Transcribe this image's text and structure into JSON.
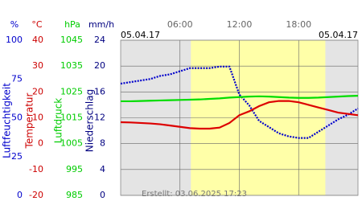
{
  "chart_data": {
    "type": "line",
    "dates": [
      "05.04.17",
      "05.04.17"
    ],
    "footer": "Erstellt: 03.06.2025 17:23",
    "xlim": [
      0,
      24
    ],
    "xticks": [
      {
        "value": 6,
        "label": "06:00"
      },
      {
        "value": 12,
        "label": "12:00"
      },
      {
        "value": 18,
        "label": "18:00"
      }
    ],
    "daylight": [
      7.1,
      20.7
    ],
    "grid": true,
    "axes": [
      {
        "unit": "%",
        "title": "Luftfeuchtigkeit",
        "color": "#0000cc",
        "ylim": [
          0,
          100
        ],
        "yticks": [
          0,
          25,
          50,
          75,
          100
        ]
      },
      {
        "unit": "°C",
        "title": "Temperatur",
        "color": "#cc0000",
        "ylim": [
          -20,
          40
        ],
        "yticks": [
          -20,
          -10,
          0,
          10,
          20,
          30,
          40
        ]
      },
      {
        "unit": "hPa",
        "title": "Luftdruck",
        "color": "#00cc00",
        "ylim": [
          985,
          1045
        ],
        "yticks": [
          985,
          995,
          1005,
          1015,
          1025,
          1035,
          1045
        ]
      },
      {
        "unit": "mm/h",
        "title": "Niederschlag",
        "color": "#000080",
        "ylim": [
          0,
          24
        ],
        "yticks": [
          0,
          4,
          8,
          12,
          16,
          20,
          24
        ]
      }
    ],
    "x": [
      0,
      1,
      2,
      3,
      4,
      5,
      6,
      7,
      8,
      9,
      10,
      11,
      12,
      13,
      14,
      15,
      16,
      17,
      18,
      19,
      20,
      21,
      22,
      23,
      24
    ],
    "series": [
      {
        "axis": 0,
        "color": "#0000cc",
        "values": [
          72,
          73,
          74,
          75,
          77,
          78,
          80,
          82,
          82,
          82,
          83,
          83,
          65,
          58,
          48,
          44,
          40,
          38,
          37,
          37,
          41,
          45,
          49,
          52,
          56
        ]
      },
      {
        "axis": 1,
        "color": "#dd0000",
        "values": [
          8.3,
          8.2,
          8,
          7.8,
          7.5,
          7,
          6.5,
          6,
          5.8,
          5.8,
          6.2,
          8,
          11,
          12.5,
          14.5,
          16,
          16.5,
          16.5,
          16,
          15,
          14,
          13,
          12,
          11.5,
          11
        ]
      },
      {
        "axis": 2,
        "color": "#00dd00",
        "values": [
          1021.4,
          1021.4,
          1021.5,
          1021.6,
          1021.7,
          1021.8,
          1021.9,
          1022,
          1022.1,
          1022.3,
          1022.5,
          1022.8,
          1023,
          1023.2,
          1023.3,
          1023.2,
          1023,
          1022.8,
          1022.7,
          1022.7,
          1022.8,
          1023,
          1023.2,
          1023.4,
          1023.5
        ]
      }
    ]
  }
}
